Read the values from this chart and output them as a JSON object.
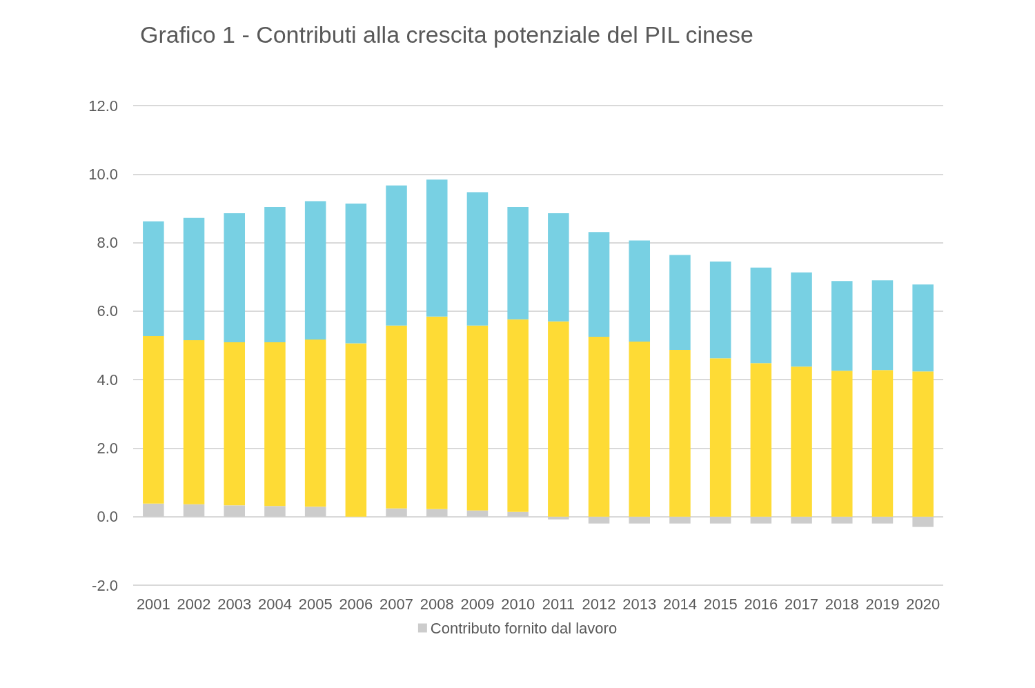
{
  "chart_data": {
    "type": "bar",
    "title": "Grafico 1 - Contributi alla crescita potenziale del PIL cinese",
    "stacked": true,
    "grid": "y",
    "legend": "bottom",
    "categories": [
      "2001",
      "2002",
      "2003",
      "2004",
      "2005",
      "2006",
      "2007",
      "2008",
      "2009",
      "2010",
      "2011",
      "2012",
      "2013",
      "2014",
      "2015",
      "2016",
      "2017",
      "2018",
      "2019",
      "2020"
    ],
    "ylim": [
      -2,
      12
    ],
    "yticks": [
      {
        "value": -2,
        "label": "-2.0"
      },
      {
        "value": 0,
        "label": "0.0"
      },
      {
        "value": 2,
        "label": "2.0"
      },
      {
        "value": 4,
        "label": "4.0"
      },
      {
        "value": 6,
        "label": "6.0"
      },
      {
        "value": 8,
        "label": "8.0"
      },
      {
        "value": 10,
        "label": "10.0"
      },
      {
        "value": 12,
        "label": "12.0"
      }
    ],
    "series": [
      {
        "name": "Contributo fornito dal lavoro",
        "color": "#cccccc",
        "values": [
          0.38,
          0.36,
          0.33,
          0.31,
          0.29,
          null,
          0.24,
          0.22,
          0.18,
          0.14,
          -0.08,
          -0.2,
          -0.2,
          -0.2,
          -0.2,
          -0.2,
          -0.2,
          -0.2,
          -0.2,
          -0.3
        ]
      },
      {
        "color": "#fedb35",
        "values": [
          4.89,
          4.79,
          4.76,
          4.78,
          4.88,
          5.06,
          5.34,
          5.62,
          5.4,
          5.62,
          5.7,
          5.25,
          5.11,
          4.87,
          4.62,
          4.48,
          4.38,
          4.26,
          4.28,
          4.24
        ]
      },
      {
        "color": "#78d0e3",
        "values": [
          3.35,
          3.57,
          3.77,
          3.95,
          4.04,
          4.08,
          4.09,
          4.0,
          3.89,
          3.28,
          3.16,
          3.06,
          2.95,
          2.77,
          2.83,
          2.79,
          2.75,
          2.62,
          2.62,
          2.54
        ]
      }
    ]
  }
}
